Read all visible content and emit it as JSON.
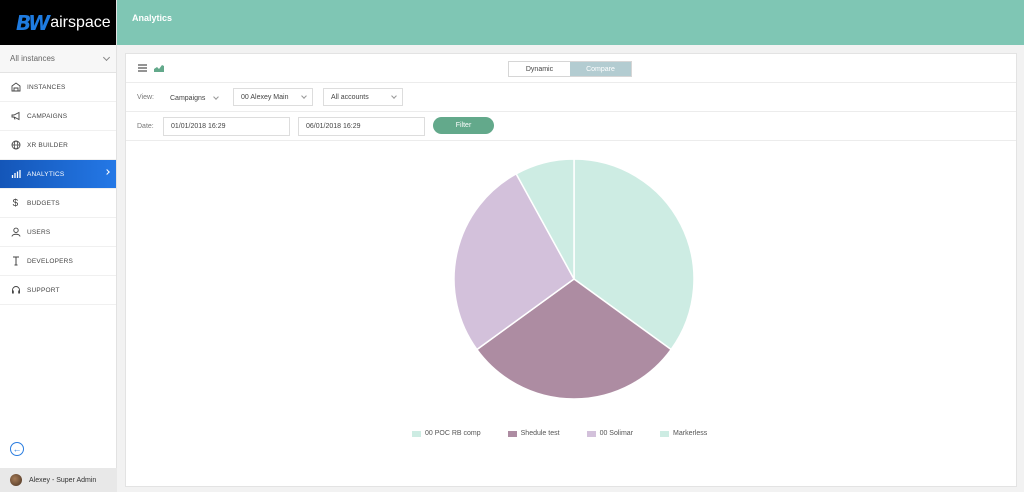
{
  "app": {
    "logo_mark": "BW",
    "logo_text": "airspace",
    "page_title": "Analytics"
  },
  "sidebar": {
    "instance_select": "All instances",
    "items": [
      {
        "label": "INSTANCES",
        "icon": "building-icon"
      },
      {
        "label": "CAMPAIGNS",
        "icon": "megaphone-icon"
      },
      {
        "label": "XR BUILDER",
        "icon": "globe-icon"
      },
      {
        "label": "ANALYTICS",
        "icon": "bar-chart-icon",
        "active": true
      },
      {
        "label": "BUDGETS",
        "icon": "dollar-icon"
      },
      {
        "label": "USERS",
        "icon": "user-icon"
      },
      {
        "label": "DEVELOPERS",
        "icon": "tool-icon"
      },
      {
        "label": "SUPPORT",
        "icon": "headset-icon"
      }
    ],
    "user": "Alexey - Super Admin"
  },
  "toolbar": {
    "tabs": [
      "Dynamic",
      "Compare"
    ],
    "active_tab": "Dynamic"
  },
  "filters": {
    "view_label": "View:",
    "view_value": "Campaigns",
    "instance_value": "00 Alexey Main",
    "accounts_value": "All accounts",
    "date_label": "Date:",
    "date_from": "01/01/2018 16:29",
    "date_to": "06/01/2018 16:29",
    "filter_button": "Filter"
  },
  "colors": {
    "accent": "#7fc6b4",
    "active_nav": "#1f6fd8",
    "filter_button": "#63a98b"
  },
  "chart_data": {
    "type": "pie",
    "series": [
      {
        "name": "00 POC RB comp",
        "value": 35,
        "color": "#cdece3"
      },
      {
        "name": "Shedule test",
        "value": 30,
        "color": "#ad8ca2"
      },
      {
        "name": "00 Solimar",
        "value": 27,
        "color": "#d3c1db"
      },
      {
        "name": "Markerless",
        "value": 8,
        "color": "#cdece3"
      }
    ],
    "legend_position": "bottom"
  }
}
